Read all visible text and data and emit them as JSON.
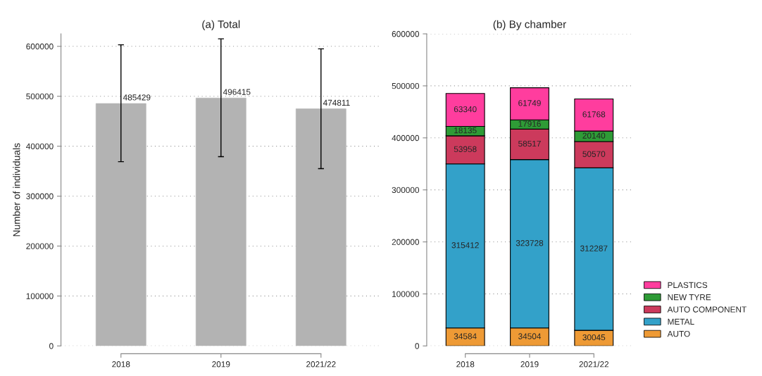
{
  "chart_data": [
    {
      "type": "bar",
      "title": "(a) Total",
      "ylabel": "Number of individuals",
      "categories": [
        "2018",
        "2019",
        "2021/22"
      ],
      "series": [
        {
          "color": "#b3b3b3",
          "values": [
            485429,
            496415,
            474811
          ],
          "errors": [
            [
              369000,
              603000
            ],
            [
              379000,
              615000
            ],
            [
              355000,
              595000
            ]
          ]
        }
      ],
      "data_labels": true,
      "ylim": [
        0,
        625000
      ],
      "yticks": [
        0,
        100000,
        200000,
        300000,
        400000,
        500000,
        600000
      ],
      "grid": "y",
      "legend": false
    },
    {
      "type": "bar",
      "title": "(b) By chamber",
      "categories": [
        "2018",
        "2019",
        "2021/22"
      ],
      "stacked": true,
      "series": [
        {
          "name": "AUTO",
          "color": "#ee9a35",
          "values": [
            34584,
            34504,
            30045
          ]
        },
        {
          "name": "METAL",
          "color": "#33a1c9",
          "values": [
            315412,
            323728,
            312287
          ]
        },
        {
          "name": "AUTO COMPONENT",
          "color": "#cc3a5c",
          "values": [
            53958,
            58517,
            50570
          ]
        },
        {
          "name": "NEW TYRE",
          "color": "#2e9b36",
          "values": [
            18135,
            17916,
            20140
          ]
        },
        {
          "name": "PLASTICS",
          "color": "#ff3d9e",
          "values": [
            63340,
            61749,
            61768
          ]
        }
      ],
      "data_labels": true,
      "ylim": [
        0,
        600000
      ],
      "yticks": [
        0,
        100000,
        200000,
        300000,
        400000,
        500000,
        600000
      ],
      "grid": "y",
      "legend": "bottom right"
    }
  ]
}
